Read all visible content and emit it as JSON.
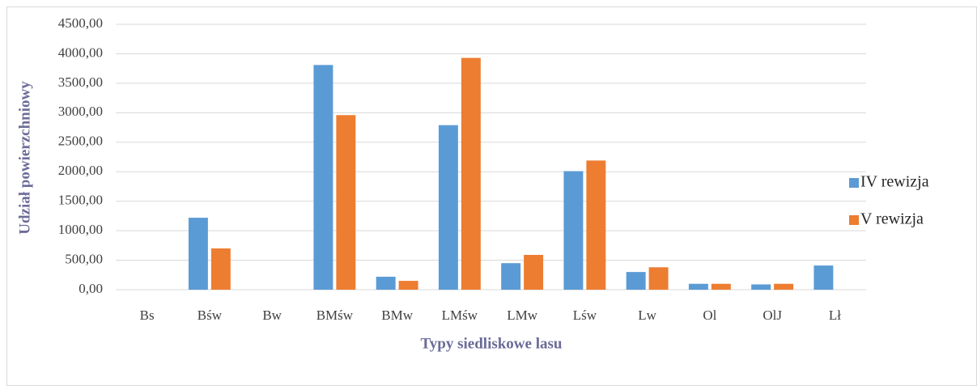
{
  "chart_data": {
    "type": "bar",
    "xlabel": "Typy siedliskowe lasu",
    "ylabel": "Udział powierzchniowy",
    "categories": [
      "Bs",
      "Bśw",
      "Bw",
      "BMśw",
      "BMw",
      "LMśw",
      "LMw",
      "Lśw",
      "Lw",
      "Ol",
      "OlJ",
      "Lł"
    ],
    "series": [
      {
        "name": "IV rewizja",
        "color": "#5b9bd5",
        "values": [
          0,
          1220,
          0,
          3810,
          220,
          2790,
          450,
          2010,
          300,
          100,
          90,
          410
        ]
      },
      {
        "name": "V rewizja",
        "color": "#ed7d31",
        "values": [
          0,
          700,
          0,
          2960,
          150,
          3930,
          590,
          2190,
          380,
          100,
          100,
          0
        ]
      }
    ],
    "ylim": [
      0,
      4500
    ],
    "yticks": [
      {
        "value": 0,
        "label": "0,00"
      },
      {
        "value": 500,
        "label": "500,00"
      },
      {
        "value": 1000,
        "label": "1000,00"
      },
      {
        "value": 1500,
        "label": "1500,00"
      },
      {
        "value": 2000,
        "label": "2000,00"
      },
      {
        "value": 2500,
        "label": "2500,00"
      },
      {
        "value": 3000,
        "label": "3000,00"
      },
      {
        "value": 3500,
        "label": "3500,00"
      },
      {
        "value": 4000,
        "label": "4000,00"
      },
      {
        "value": 4500,
        "label": "4500,00"
      }
    ],
    "grid": true,
    "legend": "right"
  }
}
